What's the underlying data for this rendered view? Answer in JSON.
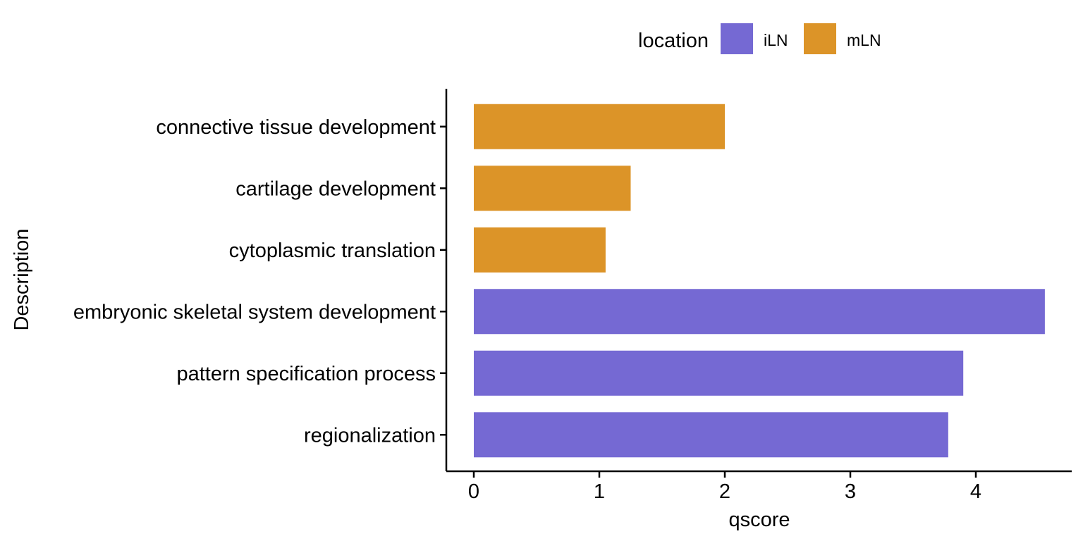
{
  "chart_data": {
    "type": "bar",
    "orientation": "horizontal",
    "xlabel": "qscore",
    "ylabel": "Description",
    "xlim": [
      0,
      4.55
    ],
    "xticks": [
      "0",
      "1",
      "2",
      "3",
      "4"
    ],
    "grid": false,
    "legend": {
      "title": "location",
      "placement": "top",
      "entries": [
        {
          "name": "iLN",
          "color": "#7569D3"
        },
        {
          "name": "mLN",
          "color": "#DC9428"
        }
      ]
    },
    "categories": [
      "connective tissue development",
      "cartilage development",
      "cytoplasmic translation",
      "embryonic skeletal system development",
      "pattern specification process",
      "regionalization"
    ],
    "values": [
      2.0,
      1.25,
      1.05,
      4.55,
      3.9,
      3.78
    ],
    "groups": [
      "mLN",
      "mLN",
      "mLN",
      "iLN",
      "iLN",
      "iLN"
    ]
  }
}
